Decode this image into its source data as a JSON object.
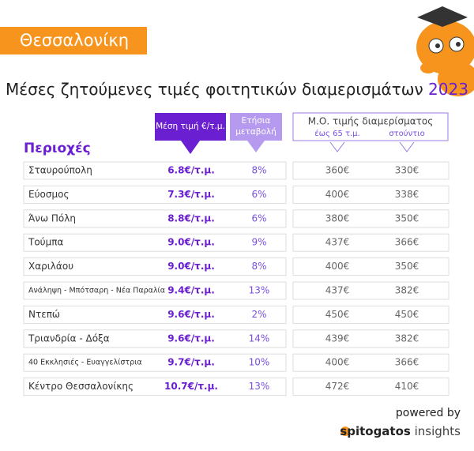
{
  "header": {
    "city": "Θεσσαλονίκη",
    "title": "Μέσες ζητούμενες τιμές φοιτητικών διαμερισμάτων",
    "year": "2023"
  },
  "table": {
    "columns": {
      "area": "Περιοχές",
      "price": "Μέση τιμή €/τ.μ.",
      "change": [
        "Ετήσια",
        "μεταβολή"
      ],
      "apartment": "Μ.Ο. τιμής διαμερίσματος",
      "upto65": "έως 65 τ.μ.",
      "studio": "στούντιο"
    },
    "rows": [
      [
        "Σταυρούπολη",
        "6.8€/τ.μ.",
        "8%",
        "360€",
        "330€"
      ],
      [
        "Εύοσμος",
        "7.3€/τ.μ.",
        "6%",
        "400€",
        "338€"
      ],
      [
        "Άνω Πόλη",
        "8.8€/τ.μ.",
        "6%",
        "380€",
        "350€"
      ],
      [
        "Τούμπα",
        "9.0€/τ.μ.",
        "9%",
        "437€",
        "366€"
      ],
      [
        "Χαριλάου",
        "9.0€/τ.μ.",
        "8%",
        "400€",
        "350€"
      ],
      [
        "Ανάληψη - Μπότσαρη - Νέα Παραλία",
        "9.4€/τ.μ.",
        "13%",
        "437€",
        "382€"
      ],
      [
        "Ντεπώ",
        "9.6€/τ.μ.",
        "2%",
        "450€",
        "450€"
      ],
      [
        "Τριανδρία - Δόξα",
        "9.6€/τ.μ.",
        "14%",
        "439€",
        "382€"
      ],
      [
        "40 Εκκλησιές - Ευαγγελίστρια",
        "9.7€/τ.μ.",
        "10%",
        "400€",
        "366€"
      ],
      [
        "Κέντρο Θεσσαλονίκης",
        "10.7€/τ.μ.",
        "13%",
        "472€",
        "410€"
      ]
    ]
  },
  "footer": {
    "powered": "powered by",
    "brand": "spitogatos",
    "suffix": "insights"
  }
}
